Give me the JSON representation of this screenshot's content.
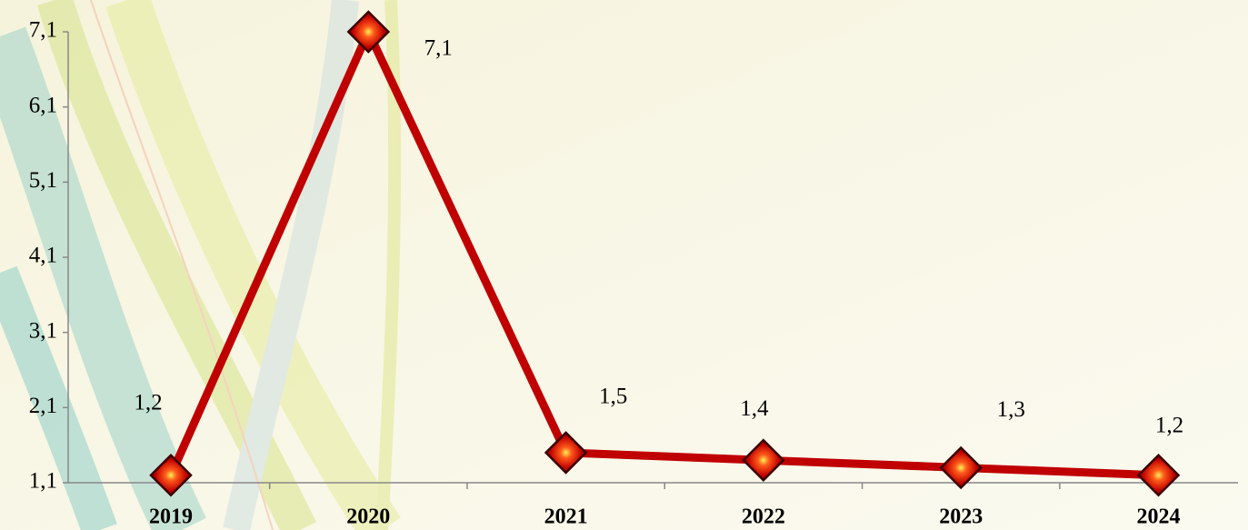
{
  "chart_data": {
    "type": "line",
    "categories": [
      "2019",
      "2020",
      "2021",
      "2022",
      "2023",
      "2024"
    ],
    "series": [
      {
        "color": "#c00000",
        "values": [
          1.2,
          7.1,
          1.5,
          1.4,
          1.3,
          1.2
        ],
        "value_labels": [
          "1,2",
          "7,1",
          "1,5",
          "1,4",
          "1,3",
          "1,2"
        ]
      }
    ],
    "ylim": [
      1.1,
      7.1
    ],
    "yticks": [
      {
        "value": 1.1,
        "label": "1,1"
      },
      {
        "value": 2.1,
        "label": "2,1"
      },
      {
        "value": 3.1,
        "label": "3,1"
      },
      {
        "value": 4.1,
        "label": "4,1"
      },
      {
        "value": 5.1,
        "label": "5,1"
      },
      {
        "value": 6.1,
        "label": "6,1"
      },
      {
        "value": 7.1,
        "label": "7,1"
      }
    ]
  }
}
